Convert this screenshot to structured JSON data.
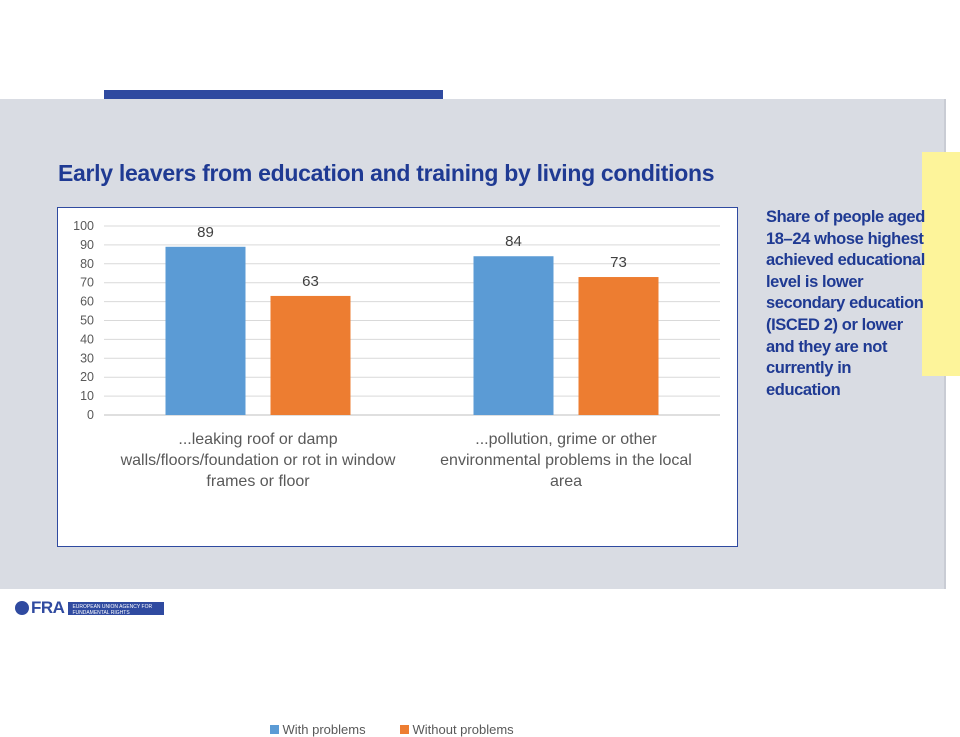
{
  "slide": {
    "title": "Early leavers from education and training by living conditions",
    "description": "Share of people aged 18–24 whose highest achieved educational level is lower secondary education (ISCED 2) or lower and they are not currently in education"
  },
  "logo": {
    "acronym": "FRA",
    "agency": "EUROPEAN UNION AGENCY FOR FUNDAMENTAL RIGHTS"
  },
  "colors": {
    "accent": "#2f4aa0",
    "with_problems": "#5b9bd5",
    "without_problems": "#ed7d31",
    "band": "#d9dce3",
    "sticky_note": "#fdf49a"
  },
  "chart_data": {
    "type": "bar",
    "categories": [
      "...leaking roof or damp walls/floors/foundation or rot in window frames or floor",
      "...pollution, grime or other environmental problems in the local area"
    ],
    "series": [
      {
        "name": "With problems",
        "values": [
          89,
          84
        ],
        "color": "#5b9bd5"
      },
      {
        "name": "Without problems",
        "values": [
          63,
          73
        ],
        "color": "#ed7d31"
      }
    ],
    "yticks": [
      0,
      10,
      20,
      30,
      40,
      50,
      60,
      70,
      80,
      90,
      100
    ],
    "ylim": [
      0,
      100
    ],
    "grid": true,
    "legend": "bottom",
    "data_labels": true
  }
}
